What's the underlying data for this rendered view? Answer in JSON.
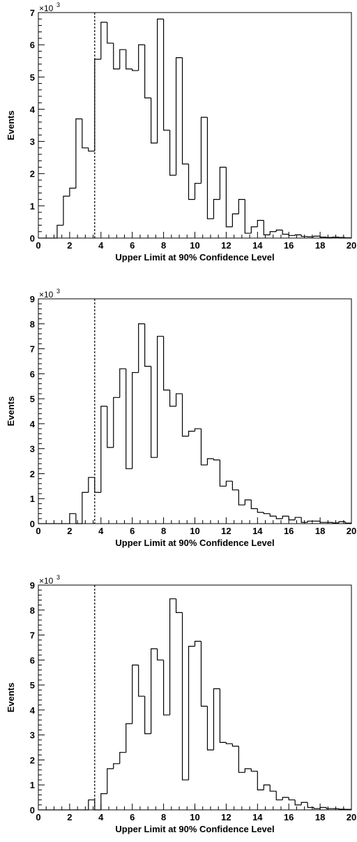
{
  "chart_data": [
    {
      "type": "histogram",
      "xlabel": "Upper Limit at 90% Confidence Level",
      "ylabel": "Events",
      "y_multiplier": "×10",
      "y_multiplier_exp": "3",
      "xlim": [
        0,
        20
      ],
      "ylim": [
        0,
        7
      ],
      "x_ticks": [
        "0",
        "2",
        "4",
        "6",
        "8",
        "10",
        "12",
        "14",
        "16",
        "18",
        "20"
      ],
      "y_ticks": [
        "0",
        "1",
        "2",
        "3",
        "4",
        "5",
        "6",
        "7"
      ],
      "bin_width": 0.4,
      "reference_line_x": 3.6,
      "values": [
        0,
        0,
        0,
        0.4,
        1.3,
        1.55,
        3.7,
        2.8,
        2.7,
        5.55,
        6.7,
        6.05,
        5.25,
        5.85,
        5.25,
        5.2,
        6.0,
        4.35,
        2.95,
        6.8,
        3.35,
        1.95,
        5.6,
        2.3,
        1.2,
        1.7,
        3.75,
        0.6,
        1.2,
        2.2,
        0.35,
        0.75,
        1.2,
        0.15,
        0.35,
        0.55,
        0.1,
        0.2,
        0.25,
        0.12,
        0.08,
        0.1,
        0.05,
        0.04,
        0.06,
        0.03,
        0.02,
        0.03,
        0.02,
        0.01
      ]
    },
    {
      "type": "histogram",
      "xlabel": "Upper Limit at 90% Confidence Level",
      "ylabel": "Events",
      "y_multiplier": "×10",
      "y_multiplier_exp": "3",
      "xlim": [
        0,
        20
      ],
      "ylim": [
        0,
        9
      ],
      "x_ticks": [
        "0",
        "2",
        "4",
        "6",
        "8",
        "10",
        "12",
        "14",
        "16",
        "18",
        "20"
      ],
      "y_ticks": [
        "0",
        "1",
        "2",
        "3",
        "4",
        "5",
        "6",
        "7",
        "8",
        "9"
      ],
      "bin_width": 0.4,
      "reference_line_x": 3.6,
      "values": [
        0,
        0,
        0,
        0,
        0,
        0.4,
        0,
        1.25,
        1.85,
        1.25,
        4.7,
        3.05,
        5.05,
        6.2,
        2.2,
        6.05,
        8.0,
        6.3,
        2.65,
        7.5,
        5.35,
        4.7,
        5.2,
        3.5,
        3.7,
        3.8,
        2.35,
        2.6,
        2.55,
        1.5,
        1.7,
        1.35,
        0.75,
        0.95,
        0.6,
        0.45,
        0.4,
        0.3,
        0.2,
        0.3,
        0.15,
        0.25,
        0.05,
        0.1,
        0.1,
        0.05,
        0.05,
        0.03,
        0.08,
        0.02
      ]
    },
    {
      "type": "histogram",
      "xlabel": "Upper Limit at 90% Confidence Level",
      "ylabel": "Events",
      "y_multiplier": "×10",
      "y_multiplier_exp": "3",
      "xlim": [
        0,
        20
      ],
      "ylim": [
        0,
        9
      ],
      "x_ticks": [
        "0",
        "2",
        "4",
        "6",
        "8",
        "10",
        "12",
        "14",
        "16",
        "18",
        "20"
      ],
      "y_ticks": [
        "0",
        "1",
        "2",
        "3",
        "4",
        "5",
        "6",
        "7",
        "8",
        "9"
      ],
      "bin_width": 0.4,
      "reference_line_x": 3.6,
      "values": [
        0,
        0,
        0,
        0,
        0,
        0,
        0,
        0,
        0.4,
        0,
        0.65,
        1.65,
        1.85,
        2.3,
        3.45,
        5.8,
        4.55,
        3.05,
        6.45,
        6.0,
        3.8,
        8.45,
        7.9,
        1.2,
        6.55,
        6.75,
        4.15,
        2.4,
        4.85,
        2.7,
        2.65,
        2.55,
        1.5,
        1.65,
        1.55,
        0.8,
        1.0,
        0.75,
        0.4,
        0.5,
        0.4,
        0.2,
        0.3,
        0.1,
        0.05,
        0.1,
        0.05,
        0.05,
        0.03,
        0.02
      ]
    }
  ]
}
